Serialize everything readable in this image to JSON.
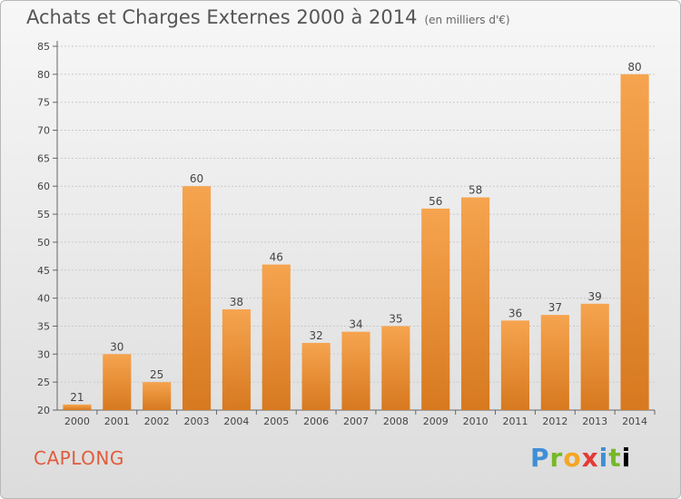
{
  "header": {
    "title": "Achats et Charges Externes 2000 à 2014",
    "subtitle": "(en milliers d'€)"
  },
  "footer": {
    "place": "CAPLONG",
    "logo": "Proxiti"
  },
  "colors": {
    "bar_top": "#f6a44f",
    "bar_bottom": "#d7791f",
    "place": "#e15b3c"
  },
  "chart_data": {
    "type": "bar",
    "title": "Achats et Charges Externes 2000 à 2014",
    "subtitle": "(en milliers d'€)",
    "categories": [
      "2000",
      "2001",
      "2002",
      "2003",
      "2004",
      "2005",
      "2006",
      "2007",
      "2008",
      "2009",
      "2010",
      "2011",
      "2012",
      "2013",
      "2014"
    ],
    "values": [
      21,
      30,
      25,
      60,
      38,
      46,
      32,
      34,
      35,
      56,
      58,
      36,
      37,
      39,
      80
    ],
    "ylim": [
      20,
      85
    ],
    "yticks": [
      20,
      25,
      30,
      35,
      40,
      45,
      50,
      55,
      60,
      65,
      70,
      75,
      80,
      85
    ],
    "grid": true
  }
}
